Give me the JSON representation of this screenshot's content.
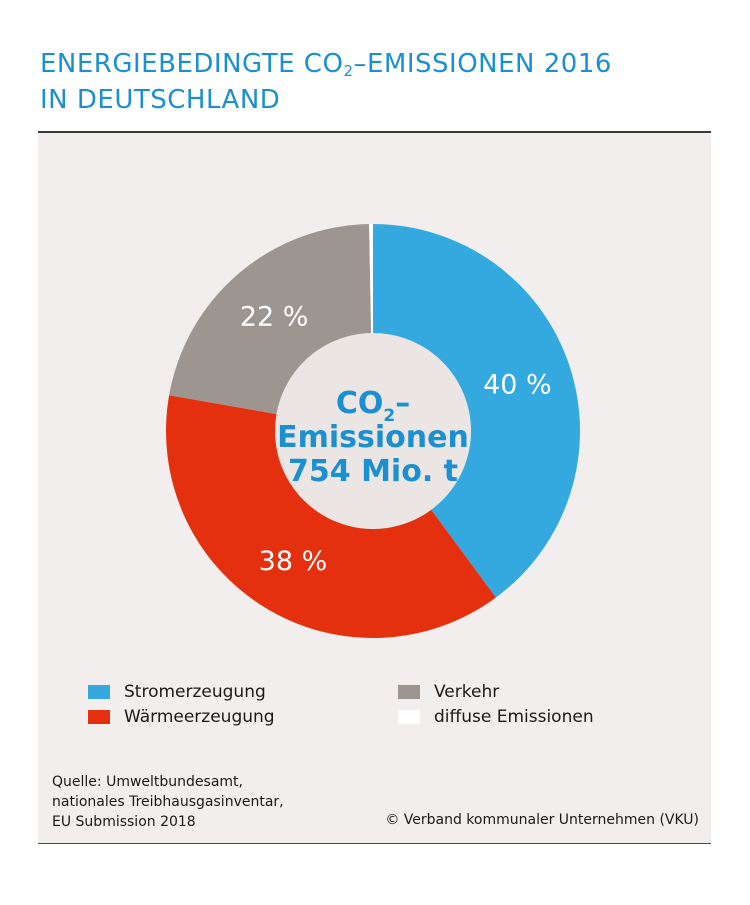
{
  "title": {
    "line1_pre": "ENERGIEBEDINGTE CO",
    "line1_sub": "2",
    "line1_post": "–EMISSIONEN 2016",
    "line2": "IN DEUTSCHLAND"
  },
  "chart_data": {
    "type": "pie",
    "variant": "donut",
    "title": "ENERGIEBEDINGTE CO2–EMISSIONEN 2016 IN DEUTSCHLAND",
    "center_label": {
      "line1_pre": "CO",
      "line1_sub": "2",
      "line1_post": "–",
      "line2": "Emissionen",
      "line3": "754 Mio. t"
    },
    "slices": [
      {
        "name": "Stromerzeugung",
        "value": 40,
        "label": "40 %",
        "color": "#33a9e0"
      },
      {
        "name": "Wärmeerzeugung",
        "value": 38,
        "label": "38 %",
        "color": "#e4300f"
      },
      {
        "name": "Verkehr",
        "value": 22,
        "label": "22 %",
        "color": "#9c9590"
      },
      {
        "name": "diffuse Emissionen",
        "value": 0.3,
        "label": "",
        "color": "#ffffff"
      }
    ],
    "legend_position": "bottom"
  },
  "legend": [
    {
      "label": "Stromerzeugung",
      "color": "#33a9e0"
    },
    {
      "label": "Wärmeerzeugung",
      "color": "#e4300f"
    },
    {
      "label": "Verkehr",
      "color": "#9c9590"
    },
    {
      "label": "diffuse Emissionen",
      "color": "#ffffff"
    }
  ],
  "source": {
    "line1": "Quelle: Umweltbundesamt,",
    "line2": "nationales Treibhausgasinventar,",
    "line3": "EU Submission 2018"
  },
  "copyright": "© Verband kommunaler Unternehmen (VKU)",
  "colors": {
    "accent": "#1b8fcf",
    "panel": "#f1eeed",
    "center": "#ebe6e4"
  }
}
